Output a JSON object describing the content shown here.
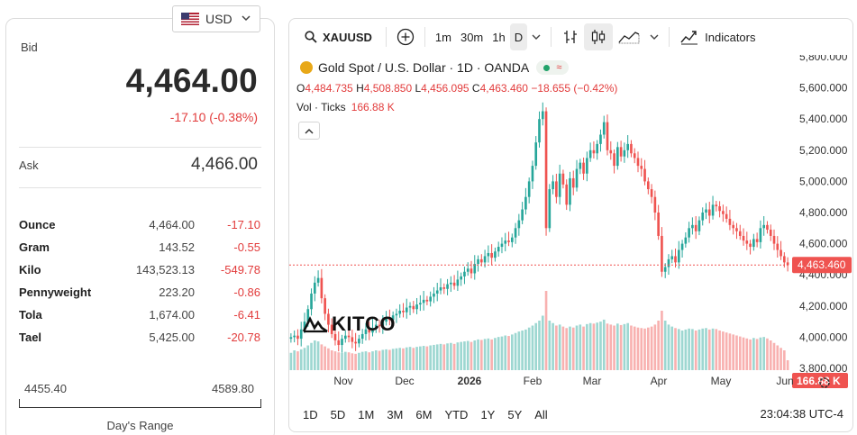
{
  "currency": {
    "selected": "USD",
    "icon": "us-flag-icon"
  },
  "quote": {
    "bid_label": "Bid",
    "bid": "4,464.00",
    "change": "-17.10 (-0.38%)",
    "ask_label": "Ask",
    "ask": "4,466.00"
  },
  "units": [
    {
      "name": "Ounce",
      "price": "4,464.00",
      "change": "-17.10"
    },
    {
      "name": "Gram",
      "price": "143.52",
      "change": "-0.55"
    },
    {
      "name": "Kilo",
      "price": "143,523.13",
      "change": "-549.78"
    },
    {
      "name": "Pennyweight",
      "price": "223.20",
      "change": "-0.86"
    },
    {
      "name": "Tola",
      "price": "1,674.00",
      "change": "-6.41"
    },
    {
      "name": "Tael",
      "price": "5,425.00",
      "change": "-20.78"
    }
  ],
  "days_range": {
    "low": "4455.40",
    "high": "4589.80",
    "label": "Day's Range"
  },
  "toolbar": {
    "symbol": "XAUUSD",
    "intervals": [
      "1m",
      "30m",
      "1h",
      "D"
    ],
    "indicators_label": "Indicators"
  },
  "legend": {
    "title": "Gold Spot / U.S. Dollar · 1D · OANDA",
    "o_label": "O",
    "o": "4,484.735",
    "h_label": "H",
    "h": "4,508.850",
    "l_label": "L",
    "l": "4,456.095",
    "c_label": "C",
    "c": "4,463.460",
    "chg": "−18.655 (−0.42%)",
    "vol_label": "Vol · Ticks",
    "vol": "166.88 K"
  },
  "watermark": "KITCO",
  "ranges": [
    "1D",
    "5D",
    "1M",
    "3M",
    "6M",
    "YTD",
    "1Y",
    "5Y",
    "All"
  ],
  "clock": "23:04:38 UTC-4",
  "colors": {
    "up": "#26a69a",
    "down": "#ef5350",
    "price_tag": "#ef5350",
    "gold": "#e8a818"
  },
  "chart_data": {
    "type": "candlestick",
    "y_ticks": [
      "5,800.000",
      "5,600.000",
      "5,400.000",
      "5,200.000",
      "5,000.000",
      "4,800.000",
      "4,600.000",
      "4,400.000",
      "4,200.000",
      "4,000.000",
      "3,800.000"
    ],
    "ylim": [
      3800,
      5800
    ],
    "x_ticks": [
      "Nov",
      "Dec",
      "2026",
      "Feb",
      "Mar",
      "Apr",
      "May",
      "Jun"
    ],
    "last_price": 4463.46,
    "last_price_label": "4,463.460",
    "last_volume_label": "166.88 K",
    "closes": [
      4000,
      4010,
      3990,
      4050,
      4100,
      4180,
      4280,
      4350,
      4380,
      4250,
      4150,
      4080,
      4020,
      3980,
      3950,
      3990,
      4010,
      4000,
      3970,
      3960,
      3990,
      4020,
      4050,
      4030,
      4060,
      4080,
      4070,
      4100,
      4120,
      4110,
      4140,
      4150,
      4170,
      4160,
      4190,
      4200,
      4180,
      4210,
      4220,
      4240,
      4230,
      4260,
      4280,
      4300,
      4320,
      4310,
      4340,
      4350,
      4330,
      4370,
      4390,
      4420,
      4440,
      4410,
      4470,
      4500,
      4480,
      4520,
      4540,
      4510,
      4550,
      4580,
      4600,
      4620,
      4610,
      4640,
      4700,
      4750,
      4820,
      4900,
      5000,
      5100,
      5250,
      5400,
      5450,
      4700,
      4950,
      5000,
      4900,
      5050,
      4980,
      4850,
      5020,
      4960,
      5080,
      5120,
      5050,
      5150,
      5200,
      5180,
      5240,
      5300,
      5380,
      5200,
      5180,
      5100,
      5220,
      5160,
      5200,
      5240,
      5180,
      5150,
      5100,
      5080,
      5000,
      4950,
      4900,
      4800,
      4650,
      4420,
      4450,
      4500,
      4520,
      4480,
      4560,
      4600,
      4640,
      4700,
      4720,
      4680,
      4750,
      4800,
      4820,
      4780,
      4850,
      4840,
      4810,
      4790,
      4760,
      4720,
      4700,
      4680,
      4650,
      4620,
      4600,
      4580,
      4630,
      4610,
      4700,
      4720,
      4690,
      4650,
      4600,
      4560,
      4520,
      4480,
      4463
    ],
    "volumes": [
      35,
      40,
      38,
      42,
      45,
      50,
      55,
      60,
      58,
      52,
      48,
      44,
      40,
      38,
      36,
      35,
      37,
      36,
      34,
      33,
      35,
      37,
      38,
      36,
      38,
      40,
      39,
      41,
      42,
      41,
      43,
      44,
      45,
      44,
      46,
      47,
      45,
      47,
      48,
      49,
      48,
      50,
      51,
      52,
      53,
      52,
      54,
      55,
      53,
      56,
      57,
      58,
      59,
      57,
      60,
      62,
      61,
      63,
      64,
      62,
      65,
      67,
      68,
      70,
      69,
      72,
      75,
      78,
      80,
      82,
      86,
      90,
      95,
      100,
      110,
      160,
      100,
      95,
      90,
      92,
      88,
      85,
      88,
      86,
      90,
      92,
      88,
      93,
      95,
      94,
      96,
      98,
      102,
      94,
      92,
      90,
      94,
      91,
      93,
      95,
      90,
      88,
      86,
      85,
      84,
      86,
      88,
      92,
      100,
      120,
      100,
      92,
      88,
      85,
      83,
      80,
      82,
      84,
      83,
      80,
      82,
      84,
      85,
      82,
      84,
      83,
      80,
      78,
      76,
      74,
      72,
      70,
      68,
      66,
      64,
      62,
      65,
      63,
      66,
      67,
      64,
      60,
      55,
      50,
      45,
      40,
      20
    ]
  }
}
